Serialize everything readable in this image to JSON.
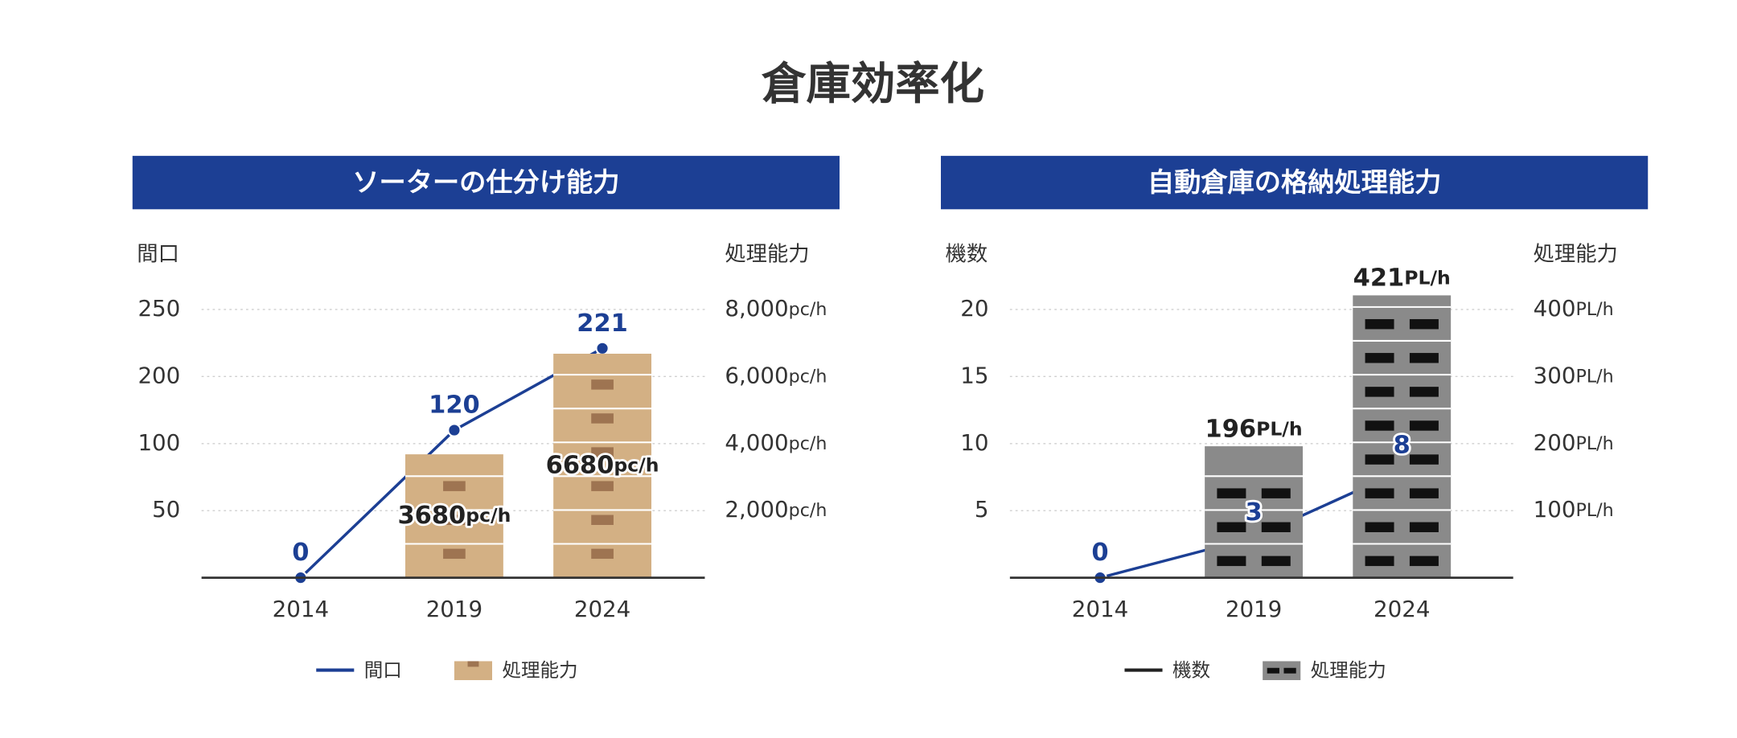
{
  "title": "倉庫効率化",
  "chart_data": [
    {
      "type": "bar",
      "title": "ソーターの仕分け能力",
      "y_label": "間口",
      "y2_label": "処理能力",
      "categories": [
        "2014",
        "2019",
        "2024"
      ],
      "ylim": [
        0,
        250
      ],
      "yticks": [
        50,
        100,
        200,
        250
      ],
      "ytick_spacing": "even",
      "y2lim": [
        0,
        8000
      ],
      "y2ticks": [
        {
          "value": 2000,
          "label": "2,000"
        },
        {
          "value": 4000,
          "label": "4,000"
        },
        {
          "value": 6000,
          "label": "6,000"
        },
        {
          "value": 8000,
          "label": "8,000"
        }
      ],
      "y2_unit": "pc/h",
      "bar_label": "middle",
      "bar_style": "boxes",
      "grid": true,
      "series": [
        {
          "name": "間口",
          "type": "line",
          "color": "#1c3f94",
          "legend_color": "#1c3f94",
          "values": [
            0,
            120,
            221
          ]
        },
        {
          "name": "処理能力",
          "type": "bar",
          "axis": "y2",
          "color": "#d3b084",
          "values": [
            null,
            3680,
            6680
          ]
        }
      ]
    },
    {
      "type": "bar",
      "title": "自動倉庫の格納処理能力",
      "y_label": "機数",
      "y2_label": "処理能力",
      "categories": [
        "2014",
        "2019",
        "2024"
      ],
      "ylim": [
        0,
        20
      ],
      "yticks": [
        5,
        10,
        15,
        20
      ],
      "ytick_spacing": "linear",
      "y2lim": [
        0,
        400
      ],
      "y2ticks": [
        100,
        200,
        300,
        400
      ],
      "y2_unit": "PL/h",
      "bar_label": "top",
      "bar_style": "racks",
      "grid": true,
      "series": [
        {
          "name": "機数",
          "type": "line",
          "color": "#1c3f94",
          "legend_color": "#222222",
          "values": [
            0,
            3,
            8
          ]
        },
        {
          "name": "処理能力",
          "type": "bar",
          "axis": "y2",
          "color": "#8a8a8a",
          "values": [
            null,
            196,
            421
          ]
        }
      ]
    }
  ]
}
